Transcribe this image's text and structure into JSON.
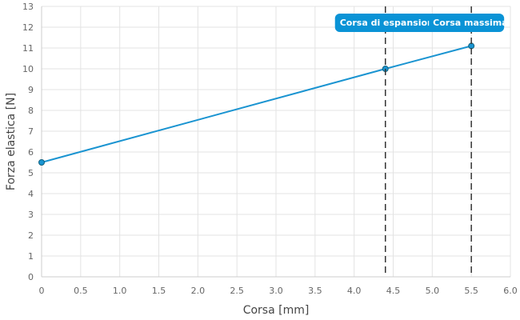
{
  "chart_data": {
    "type": "line",
    "xlabel": "Corsa [mm]",
    "ylabel": "Forza elastica [N]",
    "xlim": [
      0,
      6
    ],
    "ylim": [
      0,
      13
    ],
    "x_ticks": [
      "0",
      "0.5",
      "1.0",
      "1.5",
      "2.0",
      "2.5",
      "3.0",
      "3.5",
      "4.0",
      "4.5",
      "5.0",
      "5.5",
      "6.0"
    ],
    "y_ticks": [
      "0",
      "1",
      "2",
      "3",
      "4",
      "5",
      "6",
      "7",
      "8",
      "9",
      "10",
      "11",
      "12",
      "13"
    ],
    "grid": true,
    "series": [
      {
        "color": "#1a94d1",
        "points": [
          {
            "x": 0,
            "y": 5.5
          },
          {
            "x": 4.4,
            "y": 10
          },
          {
            "x": 5.5,
            "y": 11.1
          }
        ]
      }
    ],
    "annotations": [
      {
        "x": 4.4,
        "label": "Corsa di espansione",
        "line_style": "dashed"
      },
      {
        "x": 5.5,
        "label": "Corsa massima",
        "line_style": "dashed"
      }
    ],
    "colors": {
      "line": "#1a94d1",
      "marker_stroke": "#13627f",
      "annotation_bg": "#0a93d6",
      "annotation_text": "#ffffff",
      "vline": "#333333",
      "grid": "#e3e3e3",
      "axis": "#cccccc"
    }
  }
}
